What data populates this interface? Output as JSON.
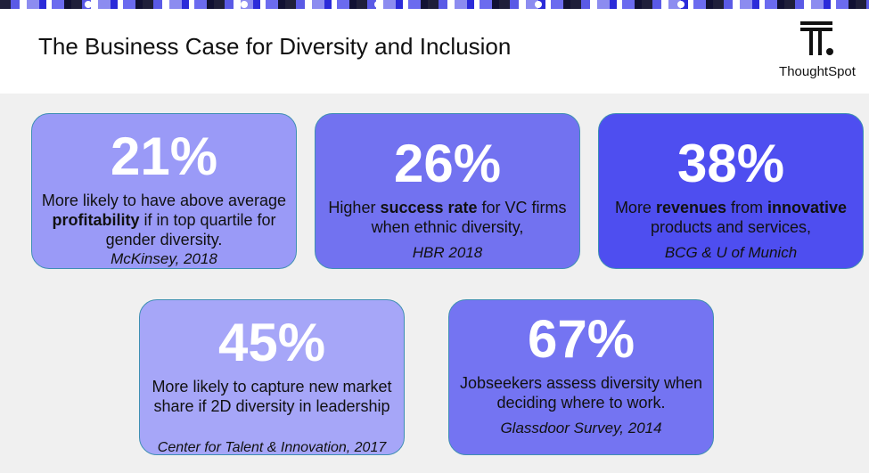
{
  "header": {
    "title": "The Business Case for Diversity and Inclusion",
    "logo_text": "ThoughtSpot",
    "logo_icon": "thoughtspot-logo-icon"
  },
  "colors": {
    "card1": "#9a9af7",
    "card2": "#7272f0",
    "card3": "#4e4ef0",
    "card4": "#a6a6f8",
    "card5": "#7474f2",
    "card_border": "#3f8fb3"
  },
  "cards": [
    {
      "percent": "21%",
      "desc_parts": [
        "More likely to have above average ",
        "profitability",
        " if in top quartile for gender diversity."
      ],
      "source": "McKinsey, 2018"
    },
    {
      "percent": "26%",
      "desc_parts": [
        "Higher ",
        "success rate",
        " for VC firms when ethnic diversity,"
      ],
      "source": "HBR 2018"
    },
    {
      "percent": "38%",
      "desc_parts": [
        "More ",
        "revenues",
        " from ",
        "innovative",
        " products and services,"
      ],
      "source": "BCG & U of Munich"
    },
    {
      "percent": "45%",
      "desc": "More likely to capture new market share if 2D diversity in leadership",
      "source": "Center for Talent & Innovation, 2017"
    },
    {
      "percent": "67%",
      "desc": "Jobseekers assess diversity when deciding where to work.",
      "source": "Glassdoor Survey, 2014"
    }
  ]
}
